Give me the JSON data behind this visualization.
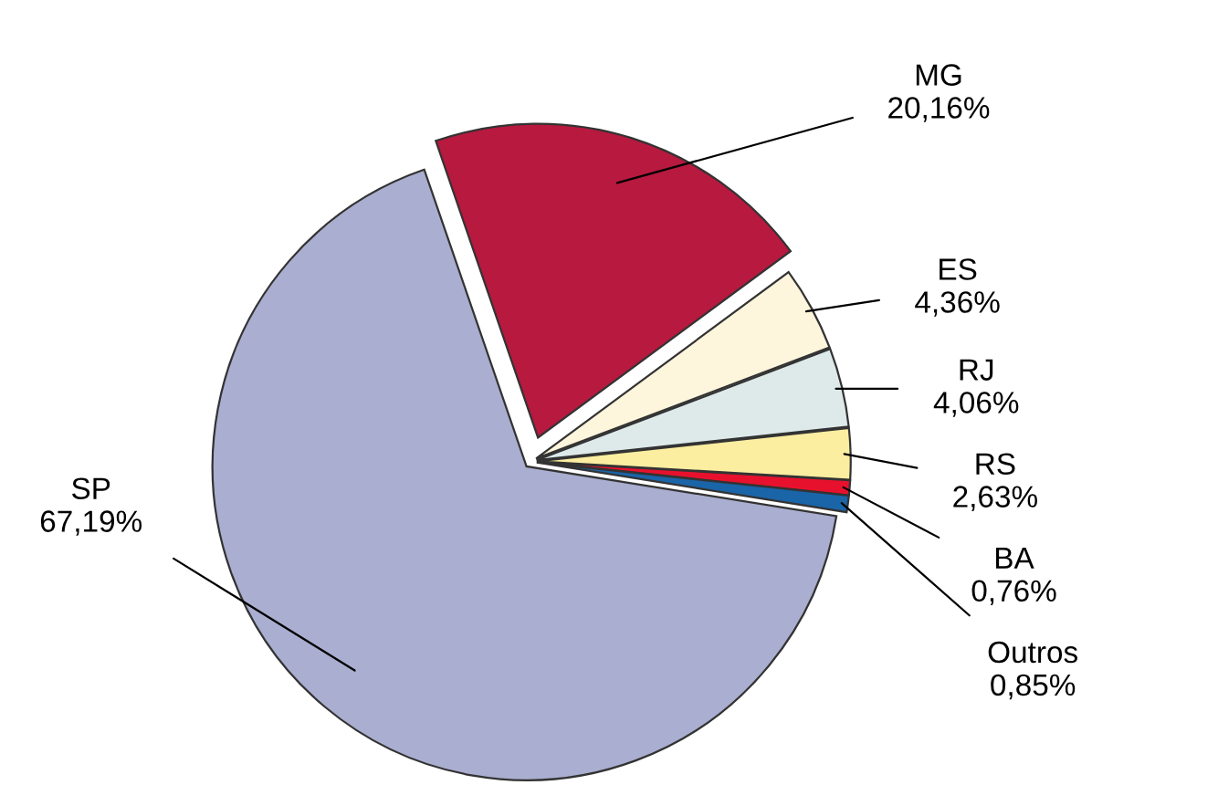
{
  "chart_data": {
    "type": "pie",
    "categories": [
      "MG",
      "ES",
      "RJ",
      "RS",
      "BA",
      "Outros",
      "SP"
    ],
    "values": [
      20.16,
      4.36,
      4.06,
      2.63,
      0.76,
      0.85,
      67.19
    ],
    "colors": [
      "#b8193f",
      "#fdf5dc",
      "#deeaea",
      "#fbeea0",
      "#e8112d",
      "#1a64a8",
      "#aaaed0"
    ],
    "value_labels": [
      "20,16%",
      "4,36%",
      "4,06%",
      "2,63%",
      "0,76%",
      "0,85%",
      "67,19%"
    ],
    "legend": false
  }
}
